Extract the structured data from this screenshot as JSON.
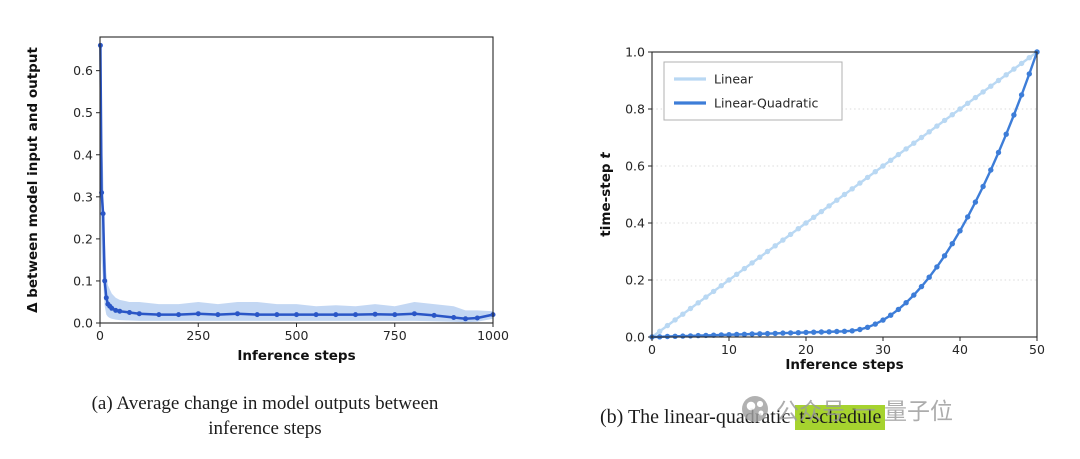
{
  "figure": {
    "captions": {
      "a_line1": "(a) Average change in model outputs between",
      "a_line2": "inference steps",
      "b_prefix": "(b) The linear-quadratic ",
      "b_highlight": "t-schedule"
    },
    "watermark": {
      "icon": "qbitai-logo",
      "part1": "公众号",
      "separator": "—",
      "part2": "量子位"
    },
    "colors": {
      "delta_line": "#2a56c6",
      "delta_band": "#a9c6ee",
      "linear": "#b9d8f3",
      "linear_quadratic": "#3d7dd8",
      "highlight": "#a6d32f"
    }
  },
  "chart_data": [
    {
      "type": "line",
      "title": "",
      "xlabel": "Inference steps",
      "ylabel": "Δ between model input and output",
      "xlim": [
        0,
        1000
      ],
      "ylim": [
        0,
        0.68
      ],
      "xticks": [
        0,
        250,
        500,
        750,
        1000
      ],
      "yticks": [
        0.0,
        0.1,
        0.2,
        0.3,
        0.4,
        0.5,
        0.6
      ],
      "grid": false,
      "legend": null,
      "series": [
        {
          "name": "delta",
          "key": "delta-series",
          "color": "#2a56c6",
          "band_color": "#a9c6ee",
          "x": [
            1,
            4,
            8,
            12,
            16,
            20,
            25,
            30,
            40,
            50,
            75,
            100,
            150,
            200,
            250,
            300,
            350,
            400,
            450,
            500,
            550,
            600,
            650,
            700,
            750,
            800,
            850,
            900,
            930,
            960,
            1000
          ],
          "y": [
            0.66,
            0.31,
            0.26,
            0.1,
            0.06,
            0.045,
            0.04,
            0.035,
            0.03,
            0.028,
            0.025,
            0.022,
            0.02,
            0.02,
            0.022,
            0.02,
            0.022,
            0.02,
            0.02,
            0.02,
            0.02,
            0.02,
            0.02,
            0.021,
            0.02,
            0.022,
            0.018,
            0.013,
            0.01,
            0.012,
            0.02
          ],
          "y_upper": [
            0.67,
            0.46,
            0.36,
            0.2,
            0.12,
            0.09,
            0.08,
            0.07,
            0.06,
            0.055,
            0.05,
            0.05,
            0.045,
            0.045,
            0.05,
            0.045,
            0.05,
            0.05,
            0.045,
            0.045,
            0.04,
            0.042,
            0.04,
            0.045,
            0.04,
            0.05,
            0.045,
            0.04,
            0.03,
            0.03,
            0.028
          ],
          "y_lower": [
            0.3,
            0.15,
            0.1,
            0.04,
            0.02,
            0.015,
            0.012,
            0.01,
            0.008,
            0.007,
            0.006,
            0.005,
            0.005,
            0.005,
            0.005,
            0.005,
            0.005,
            0.005,
            0.005,
            0.005,
            0.005,
            0.005,
            0.005,
            0.005,
            0.005,
            0.005,
            0.004,
            0.003,
            0.002,
            0.003,
            0.01
          ]
        }
      ]
    },
    {
      "type": "line",
      "title": "",
      "xlabel": "Inference steps",
      "ylabel": "time-step t",
      "xlim": [
        0,
        50
      ],
      "ylim": [
        0,
        1.0
      ],
      "xticks": [
        0,
        10,
        20,
        30,
        40,
        50
      ],
      "yticks": [
        0.0,
        0.2,
        0.4,
        0.6,
        0.8,
        1.0
      ],
      "grid": true,
      "legend": [
        "Linear",
        "Linear-Quadratic"
      ],
      "x": [
        0,
        1,
        2,
        3,
        4,
        5,
        6,
        7,
        8,
        9,
        10,
        11,
        12,
        13,
        14,
        15,
        16,
        17,
        18,
        19,
        20,
        21,
        22,
        23,
        24,
        25,
        26,
        27,
        28,
        29,
        30,
        31,
        32,
        33,
        34,
        35,
        36,
        37,
        38,
        39,
        40,
        41,
        42,
        43,
        44,
        45,
        46,
        47,
        48,
        49,
        50
      ],
      "series": [
        {
          "name": "Linear",
          "key": "linear-series",
          "color": "#b9d8f3",
          "values": [
            0.0,
            0.02,
            0.04,
            0.06,
            0.08,
            0.1,
            0.12,
            0.14,
            0.16,
            0.18,
            0.2,
            0.22,
            0.24,
            0.26,
            0.28,
            0.3,
            0.32,
            0.34,
            0.36,
            0.38,
            0.4,
            0.42,
            0.44,
            0.46,
            0.48,
            0.5,
            0.52,
            0.54,
            0.56,
            0.58,
            0.6,
            0.62,
            0.64,
            0.66,
            0.68,
            0.7,
            0.72,
            0.74,
            0.76,
            0.78,
            0.8,
            0.82,
            0.84,
            0.86,
            0.88,
            0.9,
            0.92,
            0.94,
            0.96,
            0.98,
            1.0
          ]
        },
        {
          "name": "Linear-Quadratic",
          "key": "linear-quadratic-series",
          "color": "#3d7dd8",
          "values": [
            0.0,
            0.0008,
            0.0016,
            0.0024,
            0.0032,
            0.004,
            0.0048,
            0.0056,
            0.0064,
            0.0072,
            0.008,
            0.0088,
            0.0096,
            0.0104,
            0.0112,
            0.012,
            0.0128,
            0.0136,
            0.0144,
            0.0152,
            0.016,
            0.0168,
            0.0176,
            0.0184,
            0.0192,
            0.02,
            0.0216,
            0.0263,
            0.0341,
            0.0451,
            0.0592,
            0.0764,
            0.0968,
            0.1204,
            0.147,
            0.1768,
            0.2097,
            0.2458,
            0.285,
            0.3273,
            0.3728,
            0.4214,
            0.4732,
            0.528,
            0.586,
            0.6472,
            0.7115,
            0.7789,
            0.8495,
            0.9232,
            1.0
          ]
        }
      ]
    }
  ]
}
